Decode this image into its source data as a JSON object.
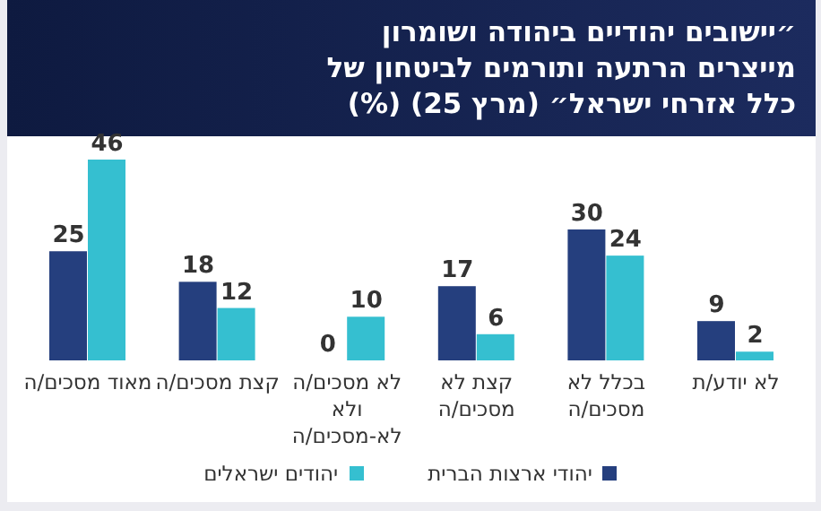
{
  "chart_data": {
    "type": "bar",
    "title": "״יישובים יהודיים ביהודה ושומרון מייצרים הרתעה ותורמים לביטחון של כלל אזרחי ישראל״ (מרץ 25) (%)",
    "categories": [
      "מאוד מסכים/ה",
      "קצת מסכים/ה",
      "לא מסכים/ה ולא לא-מסכים/ה",
      "קצת לא מסכים/ה",
      "בכלל לא מסכים/ה",
      "לא יודע/ת"
    ],
    "series": [
      {
        "name": "יהודי ארצות הברית",
        "color": "#253f7e",
        "values": [
          25,
          18,
          0,
          17,
          30,
          9
        ]
      },
      {
        "name": "יהודים ישראלים",
        "color": "#35bfd0",
        "values": [
          46,
          12,
          10,
          6,
          24,
          2
        ]
      }
    ],
    "data_labels": true,
    "legend": "bottom",
    "grid": false
  }
}
